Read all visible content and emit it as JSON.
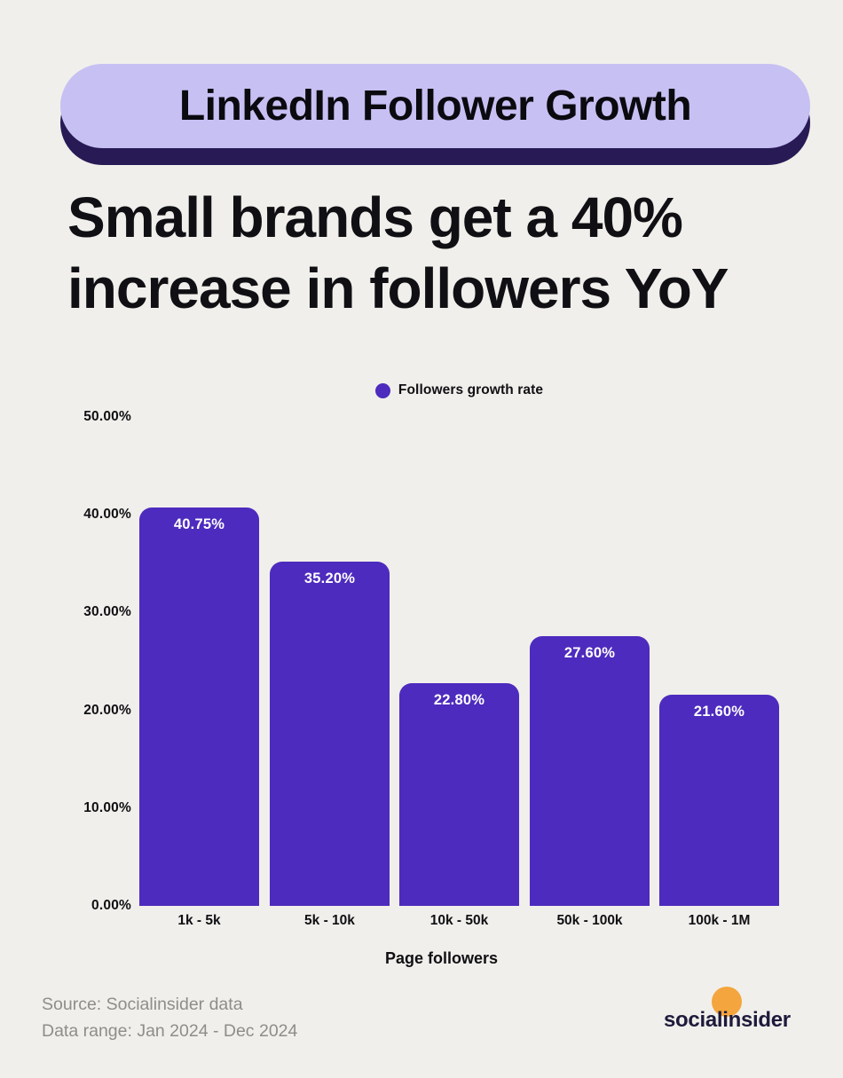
{
  "header": {
    "badge_label": "LinkedIn Follower Growth",
    "title_lines": [
      "Small brands get a 40%",
      "increase in followers YoY"
    ]
  },
  "chart_data": {
    "type": "bar",
    "title": "LinkedIn Follower Growth",
    "series_name": "Followers growth rate",
    "categories": [
      "1k - 5k",
      "5k - 10k",
      "10k - 50k",
      "50k - 100k",
      "100k - 1M"
    ],
    "values": [
      40.75,
      35.2,
      22.8,
      27.6,
      21.6
    ],
    "value_labels": [
      "40.75%",
      "35.20%",
      "22.80%",
      "27.60%",
      "21.60%"
    ],
    "xlabel": "Page followers",
    "ylabel": "",
    "ylim": [
      0,
      50
    ],
    "yticks": [
      0,
      10,
      20,
      30,
      40,
      50
    ],
    "ytick_labels": [
      "0.00%",
      "10.00%",
      "20.00%",
      "30.00%",
      "40.00%",
      "50.00%"
    ],
    "grid": false,
    "legend_position": "top-center",
    "bar_color": "#4d2bbe"
  },
  "footer": {
    "source_line1": "Source: Socialinsider data",
    "source_line2": "Data range: Jan 2024 - Dec 2024",
    "logo_text_pre": "socia",
    "logo_text_mid": "li",
    "logo_text_post": "nsider"
  },
  "colors": {
    "background": "#f0efeb",
    "badge_fill": "#c6c0f3",
    "badge_shadow": "#281a55",
    "bar_fill": "#4d2bbe",
    "legend_dot": "#4d2bbe",
    "text_dark": "#101014",
    "bar_label": "#ffffff",
    "source_text": "#8f8d89",
    "logo_navy": "#1e1a3c",
    "logo_orange": "#f4a53d"
  }
}
